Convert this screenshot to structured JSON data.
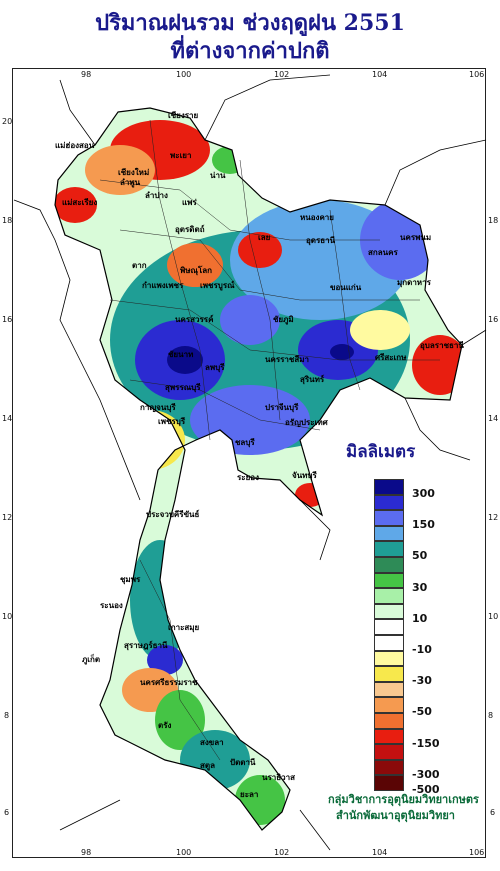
{
  "title_line1": "ปริมาณฝนรวม ช่วงฤดูฝน 2551",
  "title_line2": "ที่ต่างจากค่าปกติ",
  "legend_title": "มิลลิเมตร",
  "legend": [
    {
      "label": "300",
      "color": "#0a0a8a"
    },
    {
      "label": "",
      "color": "#2b2bd1"
    },
    {
      "label": "150",
      "color": "#5b6cf0"
    },
    {
      "label": "",
      "color": "#5fa8e8"
    },
    {
      "label": "50",
      "color": "#1f9e95"
    },
    {
      "label": "",
      "color": "#2e8b57"
    },
    {
      "label": "30",
      "color": "#45c445"
    },
    {
      "label": "",
      "color": "#a8f0a8"
    },
    {
      "label": "10",
      "color": "#d9fbd9"
    },
    {
      "label": "",
      "color": "#ffffff"
    },
    {
      "label": "-10",
      "color": "#ffffff"
    },
    {
      "label": "",
      "color": "#fffaa0"
    },
    {
      "label": "-30",
      "color": "#f7e84c"
    },
    {
      "label": "",
      "color": "#f8c890"
    },
    {
      "label": "-50",
      "color": "#f59a50"
    },
    {
      "label": "",
      "color": "#f07030"
    },
    {
      "label": "-150",
      "color": "#e81e10"
    },
    {
      "label": "",
      "color": "#c41010"
    },
    {
      "label": "-300",
      "color": "#8b0a0a"
    },
    {
      "label": "-500",
      "color": "#5a0505"
    }
  ],
  "axes": {
    "lon_top": [
      "98",
      "100",
      "102",
      "104",
      "106"
    ],
    "lon_bottom": [
      "98",
      "100",
      "102",
      "104",
      "106"
    ],
    "lat_left": [
      "20",
      "18",
      "16",
      "14",
      "12",
      "10",
      "8",
      "6"
    ],
    "lat_right": [
      "18",
      "16",
      "14",
      "12",
      "10",
      "8",
      "6"
    ]
  },
  "places": [
    "แม่ฮ่องสอน",
    "เชียงราย",
    "พะเยา",
    "น่าน",
    "เชียงใหม่",
    "ลำพูน",
    "ลำปาง",
    "แพร่",
    "แม่สะเรียง",
    "อุตรดิตถ์",
    "ตาก",
    "หนองคาย",
    "อุดรธานี",
    "นครพนม",
    "สกลนคร",
    "มุกดาหาร",
    "เลย",
    "พิษณุโลก",
    "เพชรบูรณ์",
    "ขอนแก่น",
    "กำแพงเพชร",
    "นครสวรรค์",
    "ชัยภูมิ",
    "อุบลราชธานี",
    "นครราชสีมา",
    "สุรินทร์",
    "ชัยนาท",
    "ลพบุรี",
    "กาญจนบุรี",
    "สุพรรณบุรี",
    "ปราจีนบุรี",
    "อรัญประเทศ",
    "ชลบุรี",
    "ระยอง",
    "จันทบุรี",
    "ประจวบคีรีขันธ์",
    "ชุมพร",
    "ระนอง",
    "เกาะสมุย",
    "สุราษฎร์ธานี",
    "นครศรีธรรมราช",
    "ภูเก็ต",
    "ตรัง",
    "สงขลา",
    "ปัตตานี",
    "นราธิวาส",
    "สตูล",
    "เพชรบุรี",
    "ยะลา",
    "ศรีสะเกษ"
  ],
  "footer_line1": "กลุ่มวิชาการอุตุนิยมวิทยาเกษตร",
  "footer_line2": "สำนักพัฒนาอุตุนิยมวิทยา"
}
